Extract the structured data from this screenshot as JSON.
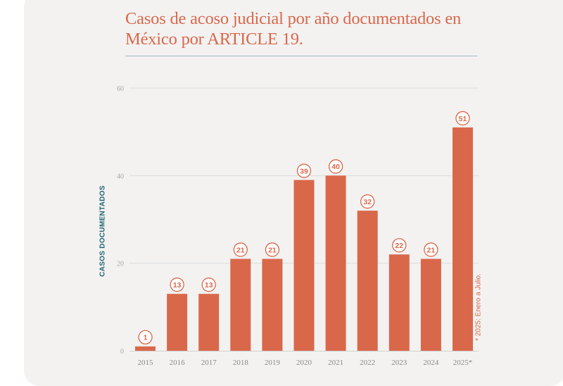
{
  "title": "Casos de acoso judicial por año documentados en México por ARTICLE 19.",
  "footnote": "* 2025: Enero a Julio.",
  "chart_data": {
    "type": "bar",
    "categories": [
      "2015",
      "2016",
      "2017",
      "2018",
      "2019",
      "2020",
      "2021",
      "2022",
      "2023",
      "2024",
      "2025*"
    ],
    "values": [
      1,
      13,
      13,
      21,
      21,
      39,
      40,
      32,
      22,
      21,
      51
    ],
    "ylabel": "CASOS DOCUMENTADOS",
    "xlabel": "",
    "ylim": [
      0,
      60
    ],
    "yticks": [
      0,
      20,
      40,
      60
    ],
    "bar_color": "#d9684b",
    "grid": true
  }
}
